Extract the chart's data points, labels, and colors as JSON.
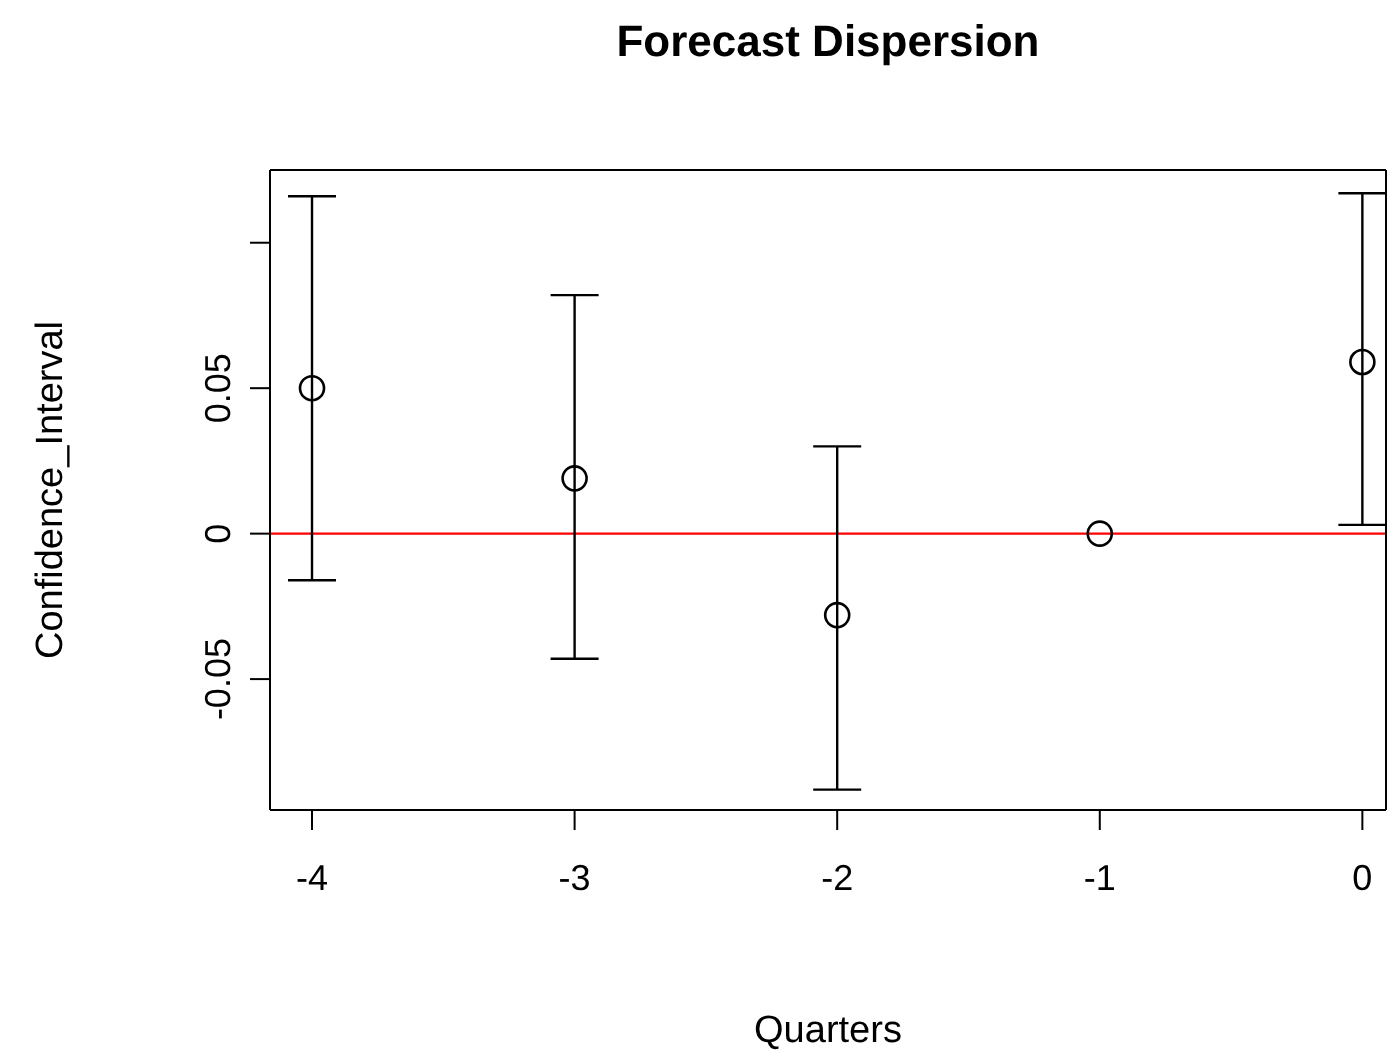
{
  "chart_data": {
    "type": "scatter",
    "title": "Forecast Dispersion",
    "xlabel": "Quarters",
    "ylabel": "Confidence_Interval",
    "x": [
      -4,
      -3,
      -2,
      -1,
      0
    ],
    "values": [
      0.05,
      0.019,
      -0.028,
      0,
      0.059
    ],
    "errors": [
      [
        -0.016,
        0.116
      ],
      [
        -0.043,
        0.082
      ],
      [
        -0.088,
        0.03
      ],
      null,
      [
        0.003,
        0.117
      ]
    ],
    "color": "#000000",
    "marker": "circle",
    "xlim": [
      -4.16,
      0.09
    ],
    "xticks": [
      -4,
      -3,
      -2,
      -1,
      0
    ],
    "ylim": [
      -0.095,
      0.125
    ],
    "yticks": [
      {
        "value": -0.05,
        "label": "-0.05"
      },
      0,
      0.05,
      {
        "value": 0.1,
        "label": null
      }
    ],
    "ref_lines": [
      {
        "axis": "y",
        "value": 0,
        "color": "#ff0000"
      }
    ]
  }
}
